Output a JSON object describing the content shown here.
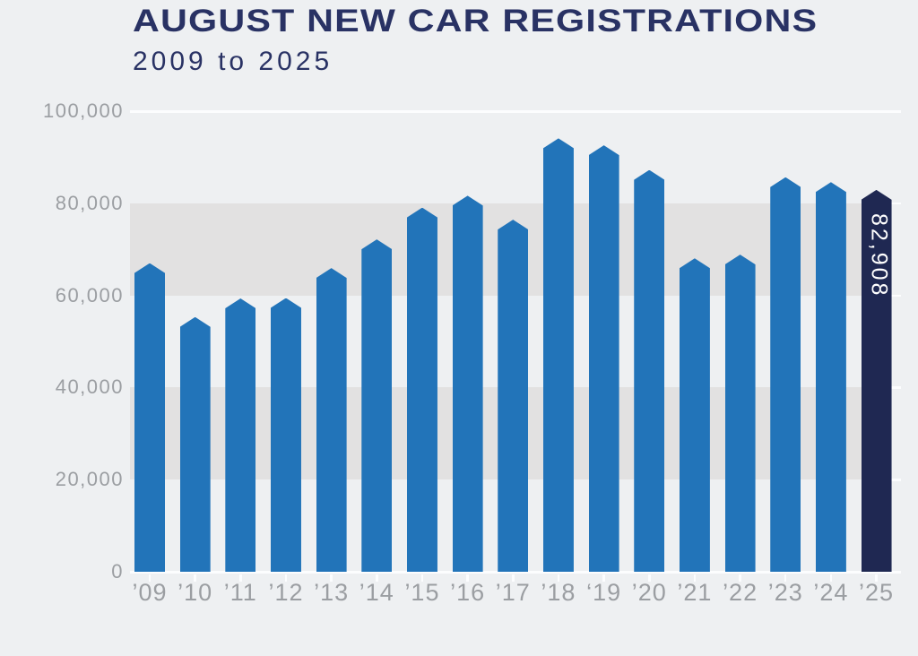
{
  "header": {
    "title": "AUGUST NEW CAR REGISTRATIONS",
    "subtitle": "2009 to 2025"
  },
  "chart_data": {
    "type": "bar",
    "title": "AUGUST NEW CAR REGISTRATIONS",
    "subtitle": "2009 to 2025",
    "categories": [
      "’09",
      "’10",
      "’11",
      "’12",
      "’13",
      "’14",
      "’15",
      "’16",
      "’17",
      "’18",
      "‘19",
      "’20",
      "’21",
      "’22",
      "’23",
      "’24",
      "’25"
    ],
    "values": [
      67006,
      55305,
      59346,
      59433,
      65937,
      72163,
      79060,
      81640,
      76433,
      94094,
      92573,
      87226,
      68033,
      68858,
      85657,
      84575,
      82908
    ],
    "highlight_index": 16,
    "highlight_label": "82,908",
    "xlabel": "",
    "ylabel": "",
    "ylim": [
      0,
      100000
    ],
    "grid": "horizontal-bands",
    "legend": "none",
    "y_ticks": [
      {
        "value": 100000,
        "label": "100,000",
        "full_line": true
      },
      {
        "value": 80000,
        "label": "80,000",
        "full_line": false
      },
      {
        "value": 60000,
        "label": "60,000",
        "full_line": false
      },
      {
        "value": 40000,
        "label": "40,000",
        "full_line": false
      },
      {
        "value": 20000,
        "label": "20,000",
        "full_line": false
      },
      {
        "value": 0,
        "label": "0",
        "full_line": true
      }
    ],
    "bands": [
      {
        "from": 60000,
        "to": 80000
      },
      {
        "from": 20000,
        "to": 40000
      }
    ],
    "colors": {
      "background": "#eef0f2",
      "bar": "#2274b9",
      "highlight_bar": "#1f2852",
      "highlight_label_text": "#ffffff",
      "band": "#e2e1e1",
      "gridline": "#fcfdfe",
      "axis_text": "#9b9ea2",
      "title_text": "#293264"
    }
  }
}
